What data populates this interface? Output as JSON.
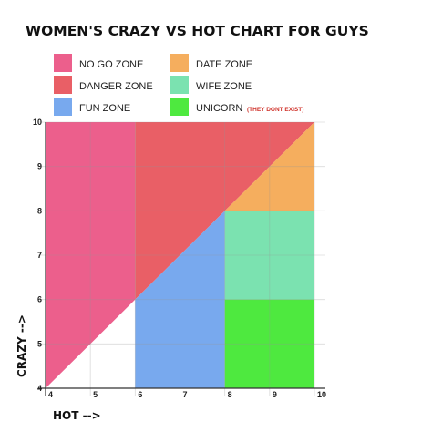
{
  "chart_data": {
    "type": "area",
    "title": "WOMEN'S CRAZY VS HOT CHART FOR GUYS",
    "xlabel": "HOT -->",
    "ylabel": "CRAZY -->",
    "xlim": [
      4,
      10
    ],
    "ylim": [
      4,
      10
    ],
    "x_ticks": [
      "4",
      "5",
      "6",
      "7",
      "8",
      "9",
      "10"
    ],
    "y_ticks": [
      "4",
      "5",
      "6",
      "7",
      "8",
      "9",
      "10"
    ],
    "grid": true,
    "legend_position": "top",
    "colors": {
      "no_go": "#ec5f8c",
      "danger": "#e95f66",
      "fun": "#78a9ee",
      "date": "#f5ae5e",
      "wife": "#7be2b0",
      "unicorn": "#4ee93f"
    },
    "zones": [
      {
        "key": "no_go",
        "label": "NO GO ZONE",
        "color": "#ec5f8c",
        "polygon": [
          [
            4,
            4
          ],
          [
            4,
            10
          ],
          [
            6,
            10
          ],
          [
            6,
            6
          ]
        ]
      },
      {
        "key": "danger",
        "label": "DANGER ZONE",
        "color": "#e95f66",
        "polygon": [
          [
            6,
            6
          ],
          [
            6,
            10
          ],
          [
            10,
            10
          ],
          [
            8,
            8
          ]
        ]
      },
      {
        "key": "fun",
        "label": "FUN ZONE",
        "color": "#78a9ee",
        "polygon": [
          [
            6,
            4
          ],
          [
            6,
            6
          ],
          [
            8,
            8
          ],
          [
            8,
            4
          ]
        ]
      },
      {
        "key": "date",
        "label": "DATE ZONE",
        "color": "#f5ae5e",
        "polygon": [
          [
            8,
            8
          ],
          [
            10,
            10
          ],
          [
            10,
            8
          ]
        ]
      },
      {
        "key": "wife",
        "label": "WIFE ZONE",
        "color": "#7be2b0",
        "polygon": [
          [
            8,
            6
          ],
          [
            8,
            8
          ],
          [
            10,
            8
          ],
          [
            10,
            6
          ]
        ]
      },
      {
        "key": "unicorn",
        "label": "UNICORN",
        "color": "#4ee93f",
        "polygon": [
          [
            8,
            4
          ],
          [
            8,
            6
          ],
          [
            10,
            6
          ],
          [
            10,
            4
          ]
        ]
      }
    ],
    "annotation": "(THEY DONT EXIST)"
  }
}
